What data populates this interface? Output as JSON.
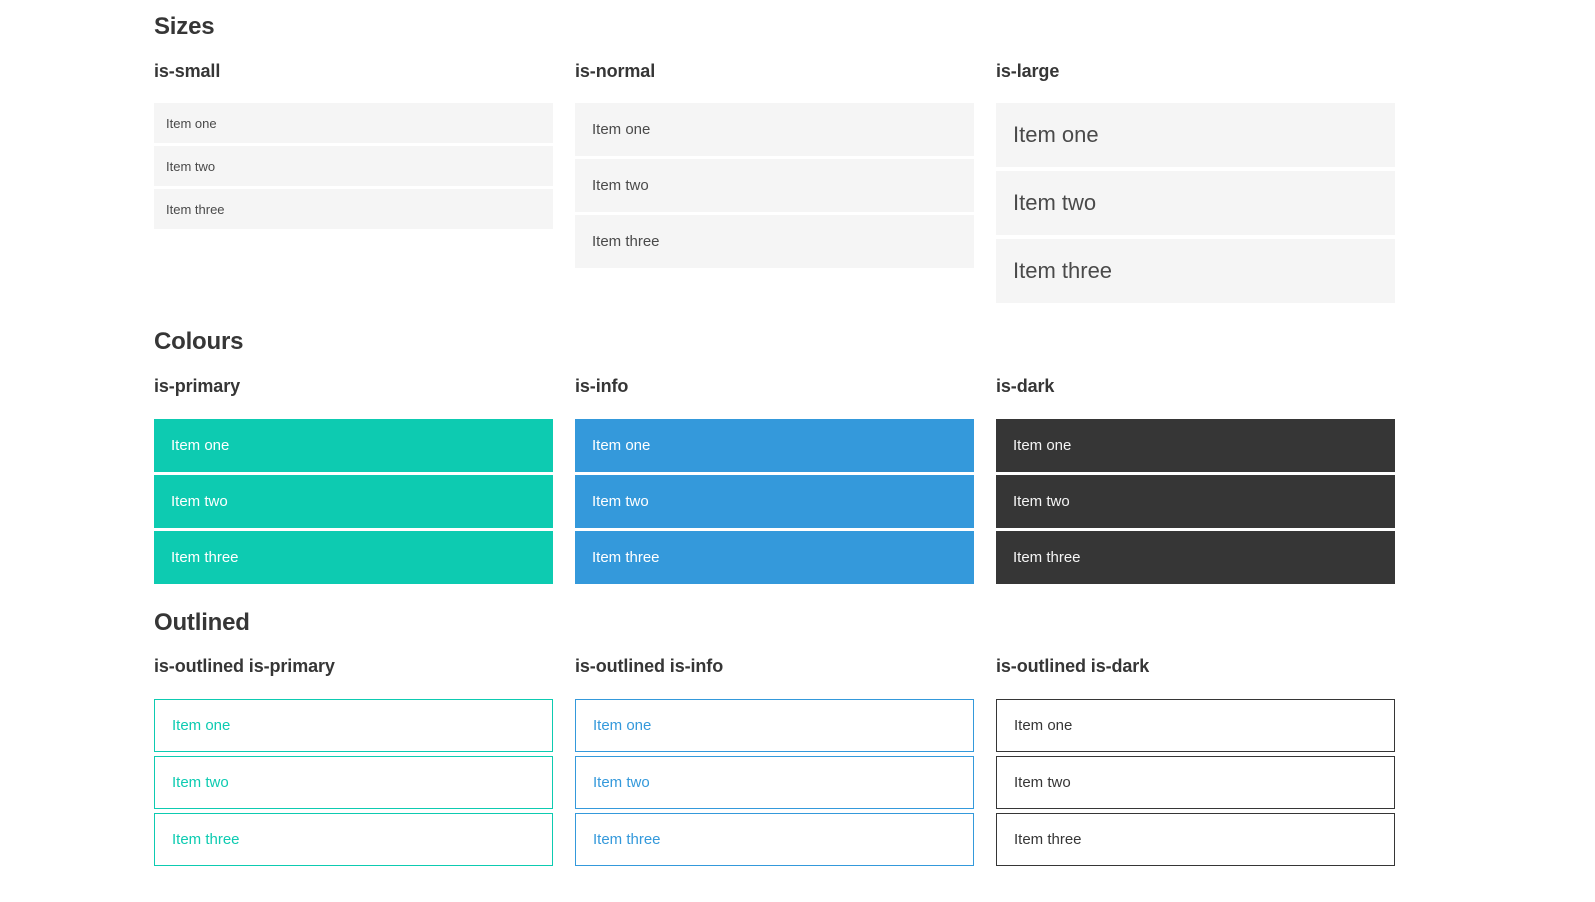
{
  "sections": [
    {
      "title": "Sizes",
      "columns": [
        {
          "label": "is-small",
          "variant": "small",
          "items": [
            "Item one",
            "Item two",
            "Item three"
          ]
        },
        {
          "label": "is-normal",
          "variant": "normal",
          "items": [
            "Item one",
            "Item two",
            "Item three"
          ]
        },
        {
          "label": "is-large",
          "variant": "large",
          "items": [
            "Item one",
            "Item two",
            "Item three"
          ]
        }
      ]
    },
    {
      "title": "Colours",
      "columns": [
        {
          "label": "is-primary",
          "variant": "primary",
          "items": [
            "Item one",
            "Item two",
            "Item three"
          ]
        },
        {
          "label": "is-info",
          "variant": "info",
          "items": [
            "Item one",
            "Item two",
            "Item three"
          ]
        },
        {
          "label": "is-dark",
          "variant": "dark",
          "items": [
            "Item one",
            "Item two",
            "Item three"
          ]
        }
      ]
    },
    {
      "title": "Outlined",
      "columns": [
        {
          "label": "is-outlined is-primary",
          "variant": "outlined-primary",
          "items": [
            "Item one",
            "Item two",
            "Item three"
          ]
        },
        {
          "label": "is-outlined is-info",
          "variant": "outlined-info",
          "items": [
            "Item one",
            "Item two",
            "Item three"
          ]
        },
        {
          "label": "is-outlined is-dark",
          "variant": "outlined-dark",
          "items": [
            "Item one",
            "Item two",
            "Item three"
          ]
        }
      ]
    }
  ],
  "colors": {
    "primary": "#0dcbb1",
    "info": "#3499db",
    "dark": "#363636",
    "heading_text": "#363636",
    "list_item_bg": "#f5f5f5",
    "list_item_text": "#4a4a4a",
    "colored_item_text": "#ffffff",
    "dark_item_text": "#f5f5f5",
    "background": "#ffffff"
  }
}
